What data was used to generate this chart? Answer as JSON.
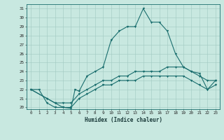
{
  "title": "",
  "xlabel": "Humidex (Indice chaleur)",
  "xlim_min": -0.5,
  "xlim_max": 23.5,
  "ylim_min": 19.8,
  "ylim_max": 31.5,
  "xticks": [
    0,
    1,
    2,
    3,
    4,
    5,
    6,
    7,
    8,
    9,
    10,
    11,
    12,
    13,
    14,
    15,
    16,
    17,
    18,
    19,
    20,
    21,
    22,
    23
  ],
  "yticks": [
    20,
    21,
    22,
    23,
    24,
    25,
    26,
    27,
    28,
    29,
    30,
    31
  ],
  "bg_color": "#c8e8e0",
  "grid_color": "#a0c8c0",
  "line_color": "#1a6e6e",
  "line1_x": [
    0,
    1,
    2,
    3,
    4,
    5,
    5.5,
    6,
    7,
    8,
    9,
    10,
    11,
    12,
    13,
    14,
    15,
    16,
    17,
    18,
    19,
    20,
    21,
    22,
    23
  ],
  "line1_y": [
    22,
    22,
    20.5,
    20,
    20,
    19.9,
    22,
    21.8,
    23.5,
    24,
    24.5,
    27.5,
    28.5,
    29,
    29,
    31,
    29.5,
    29.5,
    28.5,
    26,
    24.5,
    24,
    23.8,
    22,
    23
  ],
  "line2_x": [
    0,
    2,
    3,
    4,
    5,
    6,
    7,
    8,
    9,
    10,
    11,
    12,
    13,
    14,
    15,
    16,
    17,
    18,
    19,
    20,
    21,
    22,
    23
  ],
  "line2_y": [
    22,
    21,
    20.5,
    20.5,
    20.5,
    21.5,
    22,
    22.5,
    23,
    23,
    23.5,
    23.5,
    24,
    24,
    24,
    24,
    24.5,
    24.5,
    24.5,
    24,
    23.5,
    23,
    23
  ],
  "line3_x": [
    0,
    2,
    3,
    4,
    5,
    6,
    7,
    8,
    9,
    10,
    11,
    12,
    13,
    14,
    15,
    16,
    17,
    18,
    19,
    20,
    21,
    22,
    23
  ],
  "line3_y": [
    22,
    21,
    20.5,
    20,
    20,
    21,
    21.5,
    22,
    22.5,
    22.5,
    23,
    23,
    23,
    23.5,
    23.5,
    23.5,
    23.5,
    23.5,
    23.5,
    23,
    22.5,
    22,
    22.5
  ]
}
